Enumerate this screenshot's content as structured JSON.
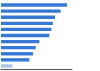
{
  "chart_data": {
    "type": "bar",
    "orientation": "horizontal",
    "categories": [
      null,
      null,
      null,
      null,
      null,
      null,
      null,
      null,
      null,
      null,
      null
    ],
    "values": [
      93,
      84,
      76,
      73,
      71,
      68,
      54,
      49,
      45,
      40,
      16
    ],
    "colors": [
      "#3579d4",
      "#3579d4",
      "#3579d4",
      "#3579d4",
      "#3579d4",
      "#3579d4",
      "#3579d4",
      "#3579d4",
      "#3579d4",
      "#3579d4",
      "#aac4e8"
    ],
    "xlim": [
      0,
      100
    ],
    "grid": false,
    "tick_labels": false
  }
}
